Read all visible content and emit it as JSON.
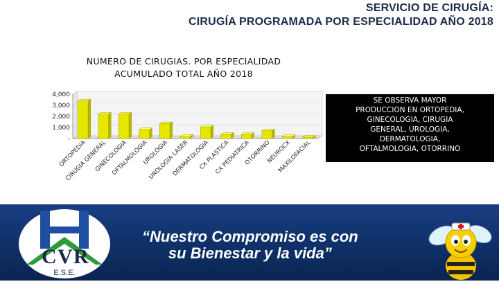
{
  "header": {
    "line1": "SERVICIO DE CIRUGÍA:",
    "line2": "CIRUGÍA PROGRAMADA POR ESPECIALIDAD AÑO 2018"
  },
  "chart_data": {
    "type": "bar",
    "title_line1": "NUMERO DE CIRUGIAS. POR ESPECIALIDAD",
    "title_line2": "ACUMULADO TOTAL AÑO 2018",
    "categories": [
      "ORTOPEDIA",
      "CIRUGIA GENERAL",
      "GINECOLOGIA",
      "OFTALMOLOGIA",
      "UROLOGIA",
      "UROLOGIA LASER",
      "DERMATOLOGIA",
      "CX PLASTICA",
      "CX PEDIATRICA",
      "OTORRINO",
      "NEUROCX",
      "MAXILOFACIAL"
    ],
    "values": [
      3400,
      2200,
      2200,
      800,
      1350,
      200,
      1050,
      380,
      380,
      700,
      180,
      130
    ],
    "yticks": [
      "-",
      "1,000",
      "2,000",
      "3,000",
      "4,000"
    ],
    "ylim": [
      0,
      4000
    ],
    "bar_color": "#e6e600",
    "grid": true,
    "legend": "none"
  },
  "note": {
    "lines": [
      "SE OBSERVA MAYOR",
      "PRODUCCION EN ORTOPEDIA,",
      "GINECOLOGIA, CIRUGIA",
      "GENERAL, UROLOGIA,",
      "DERMATOLOGIA,",
      "OFTALMOLOGIA, OTORRINO"
    ]
  },
  "footer": {
    "slogan_line1": "“Nuestro Compromiso es con",
    "slogan_line2": "su Bienestar y la vida”",
    "logo_letters": "HCVR",
    "logo_sub": "E.S.E."
  },
  "colors": {
    "band": "#11346e",
    "logo_green": "#2f9a3a",
    "logo_blue": "#1f4fa0"
  }
}
